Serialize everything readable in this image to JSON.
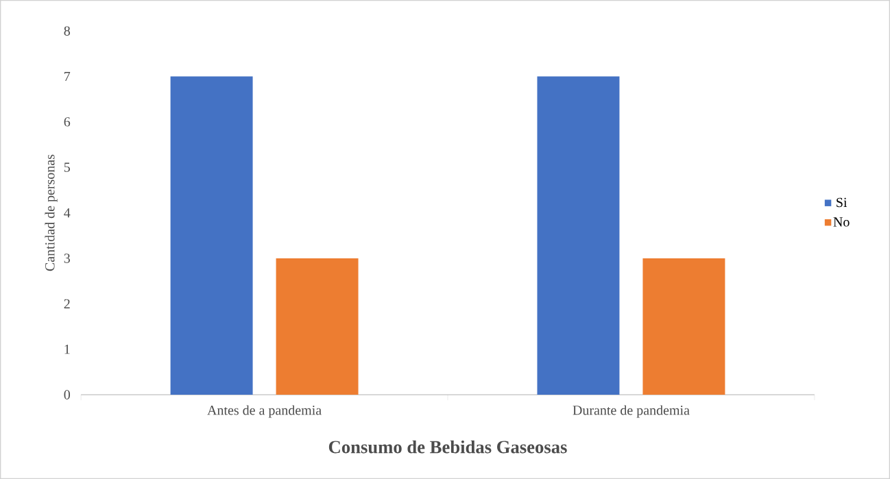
{
  "chart_data": {
    "type": "bar",
    "xlabel": "Consumo de Bebidas Gaseosas",
    "ylabel": "Cantidad de personas",
    "categories": [
      "Antes de a pandemia",
      "Durante de pandemia"
    ],
    "series": [
      {
        "name": "Si",
        "color": "#4472c4",
        "values": [
          7,
          7
        ]
      },
      {
        "name": "No",
        "color": "#ed7d31",
        "values": [
          3,
          3
        ]
      }
    ],
    "ylim": [
      0,
      8
    ],
    "yticks": [
      0,
      1,
      2,
      3,
      4,
      5,
      6,
      7,
      8
    ],
    "grid": false,
    "legend": "right"
  }
}
